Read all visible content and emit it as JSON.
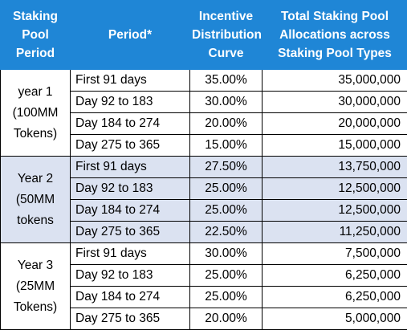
{
  "headers": {
    "staking_pool_period": "Staking Pool Period",
    "period": "Period*",
    "incentive_curve": "Incentive Distribution Curve",
    "total_allocations": "Total Staking Pool Allocations across Staking Pool Types"
  },
  "colors": {
    "header_bg": "#1f86d6",
    "shaded_group_bg": "#dbe2f1"
  },
  "groups": [
    {
      "year_label": "year 1 (100MM Tokens)",
      "shaded": false,
      "rows": [
        {
          "period": "First 91 days",
          "curve": "35.00%",
          "allocation": "35,000,000"
        },
        {
          "period": "Day 92 to 183",
          "curve": "30.00%",
          "allocation": "30,000,000"
        },
        {
          "period": "Day 184 to 274",
          "curve": "20.00%",
          "allocation": "20,000,000"
        },
        {
          "period": "Day 275 to 365",
          "curve": "15.00%",
          "allocation": "15,000,000"
        }
      ]
    },
    {
      "year_label": "Year 2 (50MM tokens",
      "shaded": true,
      "rows": [
        {
          "period": "First 91 days",
          "curve": "27.50%",
          "allocation": "13,750,000"
        },
        {
          "period": "Day 92 to 183",
          "curve": "25.00%",
          "allocation": "12,500,000"
        },
        {
          "period": "Day 184 to 274",
          "curve": "25.00%",
          "allocation": "12,500,000"
        },
        {
          "period": "Day 275 to 365",
          "curve": "22.50%",
          "allocation": "11,250,000"
        }
      ]
    },
    {
      "year_label": "Year 3 (25MM Tokens)",
      "shaded": false,
      "rows": [
        {
          "period": "First 91 days",
          "curve": "30.00%",
          "allocation": "7,500,000"
        },
        {
          "period": "Day 92 to 183",
          "curve": "25.00%",
          "allocation": "6,250,000"
        },
        {
          "period": "Day 184 to 274",
          "curve": "25.00%",
          "allocation": "6,250,000"
        },
        {
          "period": "Day 275 to 365",
          "curve": "20.00%",
          "allocation": "5,000,000"
        }
      ]
    }
  ]
}
